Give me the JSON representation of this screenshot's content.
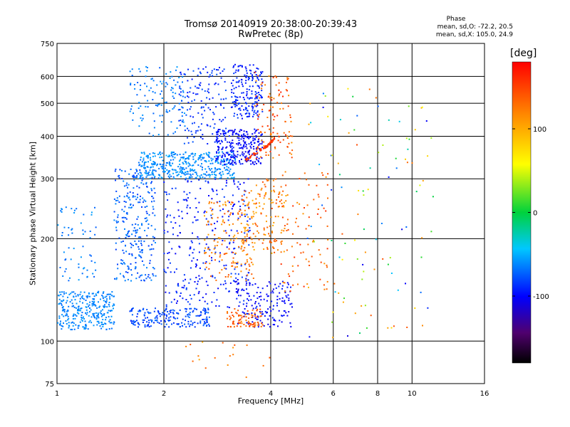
{
  "chart_data": {
    "type": "scatter",
    "title": "Tromsø 20140919 20:38:00-20:39:43",
    "subtitle": "RwPretec (8p)",
    "phase_summary": {
      "title": "Phase",
      "line_o": "mean, sd,O: -72.2, 20.5",
      "line_x": "mean, sd,X: 105.0, 24.9"
    },
    "xlabel": "Frequency [MHz]",
    "ylabel": "Stationary phase Virtual Height [km]",
    "x_scale": "log",
    "y_scale": "log",
    "xlim": [
      1,
      16
    ],
    "ylim": [
      75,
      750
    ],
    "x_ticks": [
      {
        "value": 1,
        "label": "1"
      },
      {
        "value": 2,
        "label": "2"
      },
      {
        "value": 4,
        "label": "4"
      },
      {
        "value": 6,
        "label": "6"
      },
      {
        "value": 8,
        "label": "8"
      },
      {
        "value": 10,
        "label": "10"
      },
      {
        "value": 16,
        "label": "16"
      }
    ],
    "y_ticks": [
      {
        "value": 75,
        "label": "75"
      },
      {
        "value": 100,
        "label": "100"
      },
      {
        "value": 200,
        "label": "200"
      },
      {
        "value": 300,
        "label": "300"
      },
      {
        "value": 400,
        "label": "400"
      },
      {
        "value": 500,
        "label": "500"
      },
      {
        "value": 600,
        "label": "600"
      },
      {
        "value": 750,
        "label": "750"
      }
    ],
    "grid": true,
    "colorbar": {
      "label": "[deg]",
      "ticks": [
        {
          "value": 100,
          "label": "100"
        },
        {
          "value": 0,
          "label": "0"
        },
        {
          "value": -100,
          "label": "-100"
        }
      ]
    },
    "clusters": [
      {
        "f": [
          1.0,
          1.45
        ],
        "h": [
          108,
          140
        ],
        "phase": [
          -70,
          -55
        ],
        "n": 300
      },
      {
        "f": [
          1.0,
          1.3
        ],
        "h": [
          150,
          250
        ],
        "phase": [
          -75,
          -55
        ],
        "n": 60
      },
      {
        "f": [
          1.45,
          1.9
        ],
        "h": [
          150,
          320
        ],
        "phase": [
          -85,
          -60
        ],
        "n": 280
      },
      {
        "f": [
          1.6,
          2.7
        ],
        "h": [
          110,
          125
        ],
        "phase": [
          -90,
          -70
        ],
        "n": 200
      },
      {
        "f": [
          1.7,
          3.2
        ],
        "h": [
          300,
          360
        ],
        "phase": [
          -70,
          -50
        ],
        "n": 400
      },
      {
        "f": [
          1.6,
          2.3
        ],
        "h": [
          400,
          640
        ],
        "phase": [
          -75,
          -55
        ],
        "n": 120
      },
      {
        "f": [
          2.0,
          3.5
        ],
        "h": [
          125,
          300
        ],
        "phase": [
          -105,
          -80
        ],
        "n": 300
      },
      {
        "f": [
          2.2,
          3.0
        ],
        "h": [
          380,
          640
        ],
        "phase": [
          -95,
          -75
        ],
        "n": 140
      },
      {
        "f": [
          2.8,
          3.8
        ],
        "h": [
          330,
          420
        ],
        "phase": [
          -110,
          -90
        ],
        "n": 250
      },
      {
        "f": [
          3.1,
          3.8
        ],
        "h": [
          450,
          650
        ],
        "phase": [
          -100,
          -80
        ],
        "n": 180
      },
      {
        "f": [
          3.2,
          4.6
        ],
        "h": [
          110,
          150
        ],
        "phase": [
          -110,
          -90
        ],
        "n": 160
      },
      {
        "f": [
          2.6,
          3.6
        ],
        "h": [
          150,
          260
        ],
        "phase": [
          100,
          145
        ],
        "n": 150
      },
      {
        "f": [
          3.0,
          3.8
        ],
        "h": [
          110,
          125
        ],
        "phase": [
          120,
          155
        ],
        "n": 80
      },
      {
        "f": [
          3.3,
          4.5
        ],
        "h": [
          180,
          300
        ],
        "phase": [
          95,
          150
        ],
        "n": 150
      },
      {
        "f": [
          3.6,
          4.6
        ],
        "h": [
          340,
          620
        ],
        "phase": [
          110,
          165
        ],
        "n": 120
      },
      {
        "f": [
          4.2,
          5.8
        ],
        "h": [
          140,
          320
        ],
        "phase": [
          110,
          160
        ],
        "n": 80
      },
      {
        "f": [
          5.0,
          11.5
        ],
        "h": [
          100,
          560
        ],
        "phase": [
          -110,
          150
        ],
        "n": 110
      },
      {
        "f": [
          2.3,
          4.0
        ],
        "h": [
          78,
          100
        ],
        "phase": [
          100,
          150
        ],
        "n": 18
      }
    ],
    "curves": [
      {
        "f": [
          3.4,
          3.6,
          3.8,
          3.95,
          4.1
        ],
        "h": [
          340,
          355,
          368,
          378,
          395
        ],
        "phase": [
          150,
          165
        ],
        "n": 60
      }
    ]
  }
}
